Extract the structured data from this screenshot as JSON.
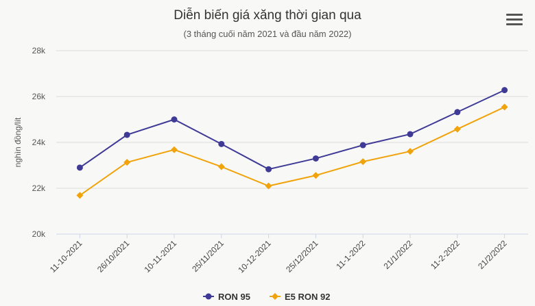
{
  "chart_data": {
    "type": "line",
    "title": "Diễn biến giá xăng thời gian qua",
    "subtitle": "(3 tháng cuối năm 2021 và đầu năm 2022)",
    "ylabel": "nghìn đồng/lít",
    "xlabel": "",
    "ylim": [
      20000,
      28000
    ],
    "yticks": [
      20000,
      22000,
      24000,
      26000,
      28000
    ],
    "ytick_labels": [
      "20k",
      "22k",
      "24k",
      "26k",
      "28k"
    ],
    "categories": [
      "11-10-2021",
      "26/10/2021",
      "10-11-2021",
      "25/11/2021",
      "10-12-2021",
      "25/12/2021",
      "11-1-2022",
      "21/1/2022",
      "11-2-2022",
      "21/2/2022"
    ],
    "series": [
      {
        "name": "RON 95",
        "color": "#3f3a96",
        "marker": "circle",
        "values": [
          22900,
          24330,
          25000,
          23930,
          22830,
          23300,
          23880,
          24360,
          25320,
          26280
        ]
      },
      {
        "name": "E5 RON 92",
        "color": "#f0a30a",
        "marker": "diamond",
        "values": [
          21690,
          23130,
          23680,
          22940,
          22100,
          22560,
          23160,
          23610,
          24580,
          25540
        ]
      }
    ],
    "grid": true,
    "legend": "bottom-center"
  }
}
